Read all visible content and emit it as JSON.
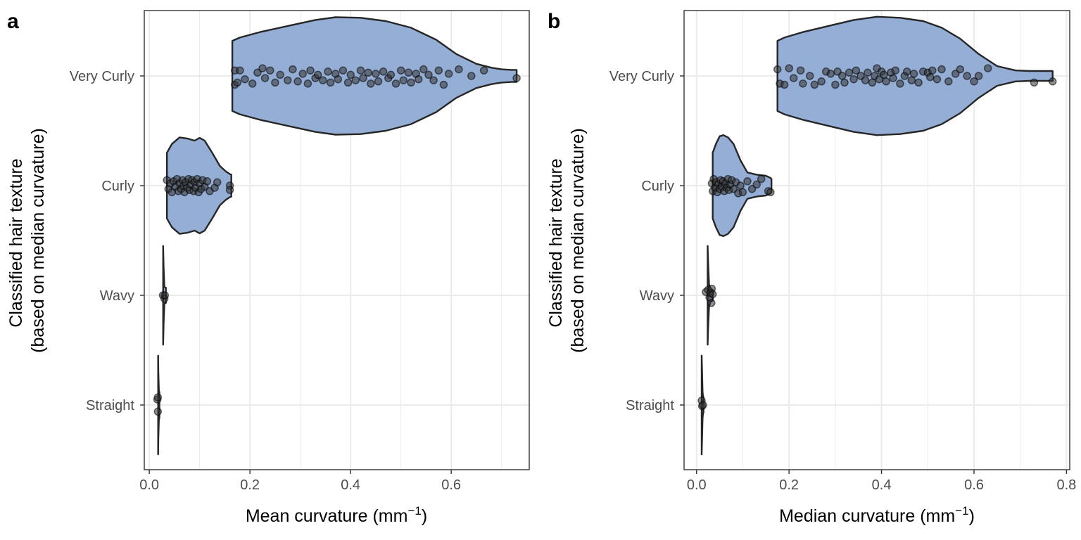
{
  "colors": {
    "violin_fill": "#94aed5",
    "violin_stroke": "#262626",
    "point_fill": "#333333"
  },
  "chart_data": [
    {
      "panel": "a",
      "type": "violin",
      "orientation": "horizontal",
      "title": "",
      "xlabel": "Mean curvature (mm",
      "xlabel_sup": "−1",
      "xlabel_end": ")",
      "ylabel": [
        "Classified hair texture",
        "(based on median curvature)"
      ],
      "xlim": [
        -0.01,
        0.755
      ],
      "x_ticks": [
        0.0,
        0.2,
        0.4,
        0.6
      ],
      "x_tick_labels": [
        "0.0",
        "0.2",
        "0.4",
        "0.6"
      ],
      "categories": [
        "Very Curly",
        "Curly",
        "Wavy",
        "Straight"
      ],
      "grid": true,
      "legend": "none",
      "violins": [
        {
          "category": "Very Curly",
          "profile": [
            [
              0.165,
              0.32
            ],
            [
              0.18,
              0.35
            ],
            [
              0.22,
              0.4
            ],
            [
              0.28,
              0.46
            ],
            [
              0.33,
              0.51
            ],
            [
              0.37,
              0.535
            ],
            [
              0.42,
              0.53
            ],
            [
              0.47,
              0.5
            ],
            [
              0.52,
              0.44
            ],
            [
              0.57,
              0.33
            ],
            [
              0.61,
              0.2
            ],
            [
              0.65,
              0.11
            ],
            [
              0.68,
              0.075
            ],
            [
              0.7,
              0.06
            ],
            [
              0.72,
              0.055
            ],
            [
              0.73,
              0.055
            ]
          ]
        },
        {
          "category": "Curly",
          "profile": [
            [
              0.035,
              0.3
            ],
            [
              0.045,
              0.38
            ],
            [
              0.06,
              0.44
            ],
            [
              0.075,
              0.43
            ],
            [
              0.09,
              0.41
            ],
            [
              0.1,
              0.435
            ],
            [
              0.11,
              0.41
            ],
            [
              0.125,
              0.3
            ],
            [
              0.14,
              0.18
            ],
            [
              0.152,
              0.13
            ],
            [
              0.16,
              0.105
            ],
            [
              0.163,
              0.1
            ]
          ]
        },
        {
          "category": "Wavy",
          "profile": [
            [
              0.0275,
              0.45
            ],
            [
              0.0285,
              0.25
            ],
            [
              0.03,
              0.08
            ],
            [
              0.0315,
              0.07
            ],
            [
              0.033,
              0.07
            ]
          ]
        },
        {
          "category": "Straight",
          "profile": [
            [
              0.0175,
              0.45
            ],
            [
              0.018,
              0.3
            ],
            [
              0.019,
              0.14
            ],
            [
              0.0195,
              0.12
            ],
            [
              0.02,
              0.12
            ]
          ]
        }
      ],
      "points": {
        "Very Curly": [
          [
            0.17,
            0.05
          ],
          [
            0.17,
            -0.08
          ],
          [
            0.175,
            -0.06
          ],
          [
            0.18,
            0.05
          ],
          [
            0.19,
            -0.03
          ],
          [
            0.205,
            -0.07
          ],
          [
            0.215,
            0.03
          ],
          [
            0.225,
            0.07
          ],
          [
            0.23,
            -0.02
          ],
          [
            0.24,
            0.05
          ],
          [
            0.25,
            -0.06
          ],
          [
            0.26,
            0.01
          ],
          [
            0.275,
            -0.04
          ],
          [
            0.285,
            0.06
          ],
          [
            0.295,
            -0.05
          ],
          [
            0.305,
            0.02
          ],
          [
            0.315,
            -0.07
          ],
          [
            0.32,
            0.05
          ],
          [
            0.33,
            -0.02
          ],
          [
            0.335,
            0.01
          ],
          [
            0.345,
            -0.04
          ],
          [
            0.355,
            0.04
          ],
          [
            0.36,
            -0.06
          ],
          [
            0.37,
            0.02
          ],
          [
            0.375,
            -0.03
          ],
          [
            0.385,
            0.05
          ],
          [
            0.395,
            -0.06
          ],
          [
            0.4,
            0.01
          ],
          [
            0.41,
            -0.04
          ],
          [
            0.42,
            0.05
          ],
          [
            0.425,
            -0.02
          ],
          [
            0.435,
            0.03
          ],
          [
            0.44,
            -0.07
          ],
          [
            0.45,
            0.02
          ],
          [
            0.455,
            -0.05
          ],
          [
            0.465,
            0.04
          ],
          [
            0.475,
            -0.02
          ],
          [
            0.48,
            0.01
          ],
          [
            0.49,
            -0.07
          ],
          [
            0.5,
            0.05
          ],
          [
            0.505,
            -0.04
          ],
          [
            0.515,
            0.03
          ],
          [
            0.52,
            -0.06
          ],
          [
            0.53,
            0.02
          ],
          [
            0.535,
            -0.03
          ],
          [
            0.545,
            0.06
          ],
          [
            0.555,
            0.01
          ],
          [
            0.565,
            -0.04
          ],
          [
            0.575,
            0.05
          ],
          [
            0.585,
            -0.08
          ],
          [
            0.595,
            0.02
          ],
          [
            0.615,
            0.06
          ],
          [
            0.64,
            0.0
          ],
          [
            0.665,
            0.05
          ],
          [
            0.73,
            -0.02
          ]
        ],
        "Curly": [
          [
            0.035,
            0.05
          ],
          [
            0.038,
            -0.03
          ],
          [
            0.042,
            0.02
          ],
          [
            0.045,
            -0.06
          ],
          [
            0.048,
            0.04
          ],
          [
            0.052,
            -0.01
          ],
          [
            0.055,
            0.06
          ],
          [
            0.058,
            -0.05
          ],
          [
            0.06,
            0.02
          ],
          [
            0.063,
            -0.03
          ],
          [
            0.066,
            0.05
          ],
          [
            0.068,
            0.0
          ],
          [
            0.07,
            -0.06
          ],
          [
            0.072,
            0.03
          ],
          [
            0.075,
            -0.02
          ],
          [
            0.078,
            0.06
          ],
          [
            0.08,
            -0.04
          ],
          [
            0.082,
            0.01
          ],
          [
            0.085,
            0.05
          ],
          [
            0.088,
            -0.05
          ],
          [
            0.09,
            0.03
          ],
          [
            0.092,
            -0.02
          ],
          [
            0.095,
            0.06
          ],
          [
            0.098,
            -0.06
          ],
          [
            0.1,
            0.02
          ],
          [
            0.103,
            -0.03
          ],
          [
            0.106,
            0.05
          ],
          [
            0.11,
            -0.01
          ],
          [
            0.115,
            0.04
          ],
          [
            0.12,
            -0.05
          ],
          [
            0.13,
            -0.02
          ],
          [
            0.135,
            0.03
          ],
          [
            0.16,
            0.0
          ],
          [
            0.16,
            -0.04
          ]
        ],
        "Wavy": [
          [
            0.027,
            0.0
          ],
          [
            0.03,
            -0.03
          ],
          [
            0.031,
            0.0
          ]
        ],
        "Straight": [
          [
            0.016,
            0.05
          ],
          [
            0.017,
            0.07
          ],
          [
            0.017,
            -0.06
          ]
        ]
      }
    },
    {
      "panel": "b",
      "type": "violin",
      "orientation": "horizontal",
      "title": "",
      "xlabel": "Median curvature (mm",
      "xlabel_sup": "−1",
      "xlabel_end": ")",
      "ylabel": [
        "Classified hair texture",
        "(based on median curvature)"
      ],
      "xlim": [
        -0.027,
        0.807
      ],
      "x_ticks": [
        0.0,
        0.2,
        0.4,
        0.6,
        0.8
      ],
      "x_tick_labels": [
        "0.0",
        "0.2",
        "0.4",
        "0.6",
        "0.8"
      ],
      "categories": [
        "Very Curly",
        "Curly",
        "Wavy",
        "Straight"
      ],
      "grid": true,
      "legend": "none",
      "violins": [
        {
          "category": "Very Curly",
          "profile": [
            [
              0.175,
              0.32
            ],
            [
              0.19,
              0.35
            ],
            [
              0.23,
              0.4
            ],
            [
              0.29,
              0.46
            ],
            [
              0.34,
              0.51
            ],
            [
              0.39,
              0.54
            ],
            [
              0.44,
              0.53
            ],
            [
              0.49,
              0.5
            ],
            [
              0.53,
              0.44
            ],
            [
              0.57,
              0.34
            ],
            [
              0.61,
              0.2
            ],
            [
              0.65,
              0.09
            ],
            [
              0.69,
              0.05
            ],
            [
              0.72,
              0.045
            ],
            [
              0.75,
              0.045
            ],
            [
              0.77,
              0.045
            ]
          ]
        },
        {
          "category": "Curly",
          "profile": [
            [
              0.035,
              0.3
            ],
            [
              0.042,
              0.38
            ],
            [
              0.05,
              0.45
            ],
            [
              0.058,
              0.46
            ],
            [
              0.068,
              0.44
            ],
            [
              0.08,
              0.38
            ],
            [
              0.095,
              0.23
            ],
            [
              0.11,
              0.12
            ],
            [
              0.13,
              0.1
            ],
            [
              0.15,
              0.09
            ],
            [
              0.16,
              0.07
            ],
            [
              0.162,
              0.06
            ]
          ]
        },
        {
          "category": "Wavy",
          "profile": [
            [
              0.024,
              0.45
            ],
            [
              0.025,
              0.3
            ],
            [
              0.027,
              0.1
            ],
            [
              0.03,
              0.06
            ],
            [
              0.034,
              0.05
            ],
            [
              0.035,
              0.05
            ]
          ]
        },
        {
          "category": "Straight",
          "profile": [
            [
              0.011,
              0.45
            ],
            [
              0.012,
              0.3
            ],
            [
              0.013,
              0.12
            ],
            [
              0.014,
              0.08
            ],
            [
              0.015,
              0.07
            ]
          ]
        }
      ],
      "points": {
        "Very Curly": [
          [
            0.175,
            0.06
          ],
          [
            0.18,
            -0.07
          ],
          [
            0.19,
            -0.08
          ],
          [
            0.2,
            0.07
          ],
          [
            0.21,
            -0.02
          ],
          [
            0.225,
            0.05
          ],
          [
            0.23,
            -0.07
          ],
          [
            0.245,
            0.0
          ],
          [
            0.255,
            -0.08
          ],
          [
            0.27,
            -0.05
          ],
          [
            0.28,
            0.04
          ],
          [
            0.29,
            0.02
          ],
          [
            0.3,
            -0.08
          ],
          [
            0.305,
            0.04
          ],
          [
            0.315,
            0.0
          ],
          [
            0.32,
            -0.06
          ],
          [
            0.33,
            0.03
          ],
          [
            0.34,
            -0.03
          ],
          [
            0.345,
            0.05
          ],
          [
            0.355,
            0.0
          ],
          [
            0.365,
            -0.04
          ],
          [
            0.37,
            0.03
          ],
          [
            0.38,
            -0.06
          ],
          [
            0.385,
            0.0
          ],
          [
            0.39,
            0.07
          ],
          [
            0.395,
            -0.03
          ],
          [
            0.4,
            0.04
          ],
          [
            0.405,
            0.01
          ],
          [
            0.41,
            -0.05
          ],
          [
            0.42,
            0.03
          ],
          [
            0.425,
            -0.02
          ],
          [
            0.43,
            0.05
          ],
          [
            0.44,
            -0.07
          ],
          [
            0.45,
            0.0
          ],
          [
            0.455,
            0.04
          ],
          [
            0.465,
            -0.04
          ],
          [
            0.47,
            0.02
          ],
          [
            0.48,
            -0.06
          ],
          [
            0.49,
            0.04
          ],
          [
            0.5,
            0.03
          ],
          [
            0.505,
            -0.01
          ],
          [
            0.51,
            0.05
          ],
          [
            0.52,
            -0.03
          ],
          [
            0.53,
            0.06
          ],
          [
            0.545,
            -0.05
          ],
          [
            0.56,
            0.02
          ],
          [
            0.57,
            0.06
          ],
          [
            0.585,
            0.0
          ],
          [
            0.6,
            -0.05
          ],
          [
            0.61,
            0.0
          ],
          [
            0.63,
            0.07
          ],
          [
            0.73,
            -0.06
          ],
          [
            0.77,
            -0.05
          ]
        ],
        "Curly": [
          [
            0.033,
            0.02
          ],
          [
            0.035,
            -0.05
          ],
          [
            0.037,
            0.06
          ],
          [
            0.04,
            -0.02
          ],
          [
            0.042,
            0.03
          ],
          [
            0.045,
            -0.06
          ],
          [
            0.047,
            0.01
          ],
          [
            0.05,
            -0.03
          ],
          [
            0.052,
            0.05
          ],
          [
            0.055,
            -0.01
          ],
          [
            0.057,
            0.04
          ],
          [
            0.06,
            -0.05
          ],
          [
            0.062,
            0.02
          ],
          [
            0.065,
            -0.02
          ],
          [
            0.068,
            0.06
          ],
          [
            0.07,
            -0.04
          ],
          [
            0.073,
            0.01
          ],
          [
            0.076,
            0.05
          ],
          [
            0.08,
            -0.03
          ],
          [
            0.085,
            0.03
          ],
          [
            0.09,
            -0.07
          ],
          [
            0.095,
            0.0
          ],
          [
            0.1,
            -0.06
          ],
          [
            0.11,
            0.04
          ],
          [
            0.12,
            -0.03
          ],
          [
            0.13,
            0.01
          ],
          [
            0.14,
            0.06
          ],
          [
            0.155,
            -0.05
          ],
          [
            0.16,
            -0.06
          ]
        ],
        "Wavy": [
          [
            0.02,
            0.03
          ],
          [
            0.025,
            0.05
          ],
          [
            0.028,
            -0.02
          ],
          [
            0.03,
            0.02
          ],
          [
            0.032,
            -0.07
          ],
          [
            0.033,
            0.06
          ],
          [
            0.035,
            0.01
          ]
        ],
        "Straight": [
          [
            0.011,
            0.04
          ],
          [
            0.012,
            -0.01
          ],
          [
            0.014,
            0.0
          ]
        ]
      }
    }
  ]
}
